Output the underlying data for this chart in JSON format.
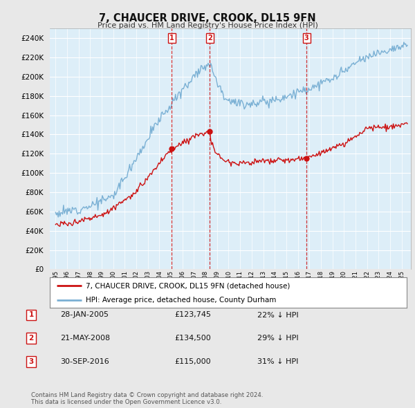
{
  "title": "7, CHAUCER DRIVE, CROOK, DL15 9FN",
  "subtitle": "Price paid vs. HM Land Registry's House Price Index (HPI)",
  "ylabel_ticks": [
    0,
    20000,
    40000,
    60000,
    80000,
    100000,
    120000,
    140000,
    160000,
    180000,
    200000,
    220000,
    240000
  ],
  "ylim": [
    0,
    250000
  ],
  "hpi_color": "#7ab0d4",
  "hpi_fill_color": "#ddeef8",
  "price_color": "#cc1111",
  "background_color": "#e8e8e8",
  "plot_bg_color": "#ddeef8",
  "grid_color": "#ffffff",
  "transactions": [
    {
      "label": "1",
      "date_num": 2005.07,
      "price": 123745,
      "text": "28-JAN-2005",
      "price_text": "£123,745",
      "hpi_text": "22% ↓ HPI"
    },
    {
      "label": "2",
      "date_num": 2008.38,
      "price": 134500,
      "text": "21-MAY-2008",
      "price_text": "£134,500",
      "hpi_text": "29% ↓ HPI"
    },
    {
      "label": "3",
      "date_num": 2016.75,
      "price": 115000,
      "text": "30-SEP-2016",
      "price_text": "£115,000",
      "hpi_text": "31% ↓ HPI"
    }
  ],
  "legend_line1": "7, CHAUCER DRIVE, CROOK, DL15 9FN (detached house)",
  "legend_line2": "HPI: Average price, detached house, County Durham",
  "footnote1": "Contains HM Land Registry data © Crown copyright and database right 2024.",
  "footnote2": "This data is licensed under the Open Government Licence v3.0."
}
